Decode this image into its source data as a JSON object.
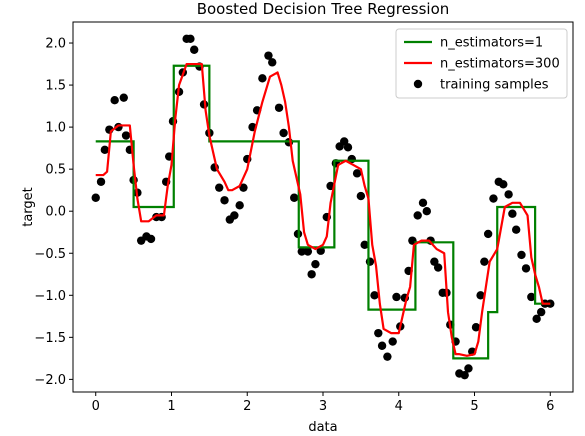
{
  "chart_data": {
    "type": "scatter",
    "title": "Boosted Decision Tree Regression",
    "xlabel": "data",
    "ylabel": "target",
    "xlim": [
      -0.3,
      6.3
    ],
    "ylim": [
      -2.15,
      2.25
    ],
    "xticks": [
      0,
      1,
      2,
      3,
      4,
      5,
      6
    ],
    "xtick_labels": [
      "0",
      "1",
      "2",
      "3",
      "4",
      "5",
      "6"
    ],
    "yticks": [
      -2.0,
      -1.5,
      -1.0,
      -0.5,
      0.0,
      0.5,
      1.0,
      1.5,
      2.0
    ],
    "ytick_labels": [
      "−2.0",
      "−1.5",
      "−1.0",
      "−0.5",
      "0.0",
      "0.5",
      "1.0",
      "1.5",
      "2.0"
    ],
    "legend_position": "top-right",
    "colors": {
      "n1": "#008000",
      "n300": "#ff0000",
      "samples": "#000000"
    },
    "series": [
      {
        "name": "n_estimators=1",
        "kind": "step",
        "x": [
          0.0,
          0.5,
          0.5,
          1.03,
          1.03,
          1.5,
          1.5,
          2.68,
          2.68,
          3.15,
          3.15,
          3.6,
          3.6,
          4.22,
          4.22,
          4.72,
          4.72,
          5.18,
          5.18,
          5.3,
          5.3,
          5.8,
          5.8,
          6.0
        ],
        "y": [
          0.83,
          0.83,
          0.05,
          0.05,
          1.73,
          1.73,
          0.83,
          0.83,
          -0.43,
          -0.43,
          0.6,
          0.6,
          -1.17,
          -1.17,
          -0.37,
          -0.37,
          -1.75,
          -1.75,
          -1.2,
          -1.2,
          0.05,
          0.05,
          -1.1,
          -1.1
        ]
      },
      {
        "name": "n_estimators=300",
        "kind": "line",
        "x": [
          0.0,
          0.1,
          0.15,
          0.2,
          0.3,
          0.4,
          0.45,
          0.5,
          0.55,
          0.6,
          0.65,
          0.7,
          0.8,
          0.9,
          0.95,
          1.0,
          1.05,
          1.1,
          1.2,
          1.3,
          1.4,
          1.45,
          1.5,
          1.55,
          1.6,
          1.7,
          1.75,
          1.8,
          1.9,
          2.0,
          2.1,
          2.2,
          2.3,
          2.4,
          2.45,
          2.5,
          2.55,
          2.6,
          2.7,
          2.75,
          2.8,
          2.9,
          3.0,
          3.05,
          3.1,
          3.2,
          3.3,
          3.4,
          3.5,
          3.55,
          3.6,
          3.65,
          3.7,
          3.75,
          3.8,
          3.9,
          4.0,
          4.1,
          4.15,
          4.2,
          4.3,
          4.4,
          4.5,
          4.6,
          4.65,
          4.7,
          4.75,
          4.8,
          4.9,
          5.0,
          5.05,
          5.1,
          5.15,
          5.2,
          5.3,
          5.4,
          5.5,
          5.6,
          5.7,
          5.75,
          5.8,
          5.85,
          5.9,
          6.0
        ],
        "y": [
          0.43,
          0.43,
          0.47,
          0.95,
          1.02,
          1.02,
          1.02,
          0.55,
          0.15,
          -0.12,
          -0.12,
          -0.12,
          -0.05,
          -0.05,
          0.3,
          0.55,
          1.1,
          1.5,
          1.75,
          1.75,
          1.75,
          1.2,
          0.9,
          0.7,
          0.5,
          0.35,
          0.25,
          0.25,
          0.3,
          0.5,
          0.95,
          1.3,
          1.6,
          1.65,
          1.5,
          1.3,
          1.0,
          0.6,
          0.2,
          -0.25,
          -0.4,
          -0.45,
          -0.4,
          -0.3,
          0.1,
          0.55,
          0.6,
          0.55,
          0.5,
          0.3,
          0.15,
          -0.4,
          -0.65,
          -1.1,
          -1.4,
          -1.45,
          -1.45,
          -1.05,
          -0.9,
          -0.4,
          -0.35,
          -0.35,
          -0.45,
          -0.5,
          -1.2,
          -1.5,
          -1.7,
          -1.7,
          -1.72,
          -1.7,
          -1.55,
          -1.2,
          -0.9,
          -0.6,
          -0.45,
          0.05,
          0.1,
          0.1,
          -0.05,
          -0.55,
          -0.75,
          -0.9,
          -1.1,
          -1.1
        ]
      },
      {
        "name": "training samples",
        "kind": "scatter",
        "x": [
          0.0,
          0.07,
          0.12,
          0.18,
          0.25,
          0.3,
          0.37,
          0.4,
          0.45,
          0.5,
          0.55,
          0.6,
          0.67,
          0.73,
          0.8,
          0.87,
          0.93,
          0.97,
          1.02,
          1.1,
          1.15,
          1.2,
          1.25,
          1.3,
          1.37,
          1.43,
          1.5,
          1.57,
          1.63,
          1.7,
          1.77,
          1.83,
          1.9,
          1.95,
          2.0,
          2.07,
          2.13,
          2.2,
          2.28,
          2.33,
          2.42,
          2.48,
          2.55,
          2.62,
          2.67,
          2.72,
          2.8,
          2.85,
          2.9,
          2.97,
          3.05,
          3.1,
          3.17,
          3.22,
          3.28,
          3.33,
          3.38,
          3.45,
          3.5,
          3.55,
          3.62,
          3.68,
          3.73,
          3.78,
          3.85,
          3.92,
          3.97,
          4.02,
          4.08,
          4.13,
          4.18,
          4.25,
          4.32,
          4.37,
          4.42,
          4.47,
          4.52,
          4.58,
          4.63,
          4.68,
          4.75,
          4.8,
          4.87,
          4.92,
          4.97,
          5.02,
          5.08,
          5.13,
          5.18,
          5.25,
          5.32,
          5.38,
          5.45,
          5.5,
          5.55,
          5.62,
          5.68,
          5.75,
          5.82,
          5.88,
          5.93,
          6.0
        ],
        "y": [
          0.16,
          0.35,
          0.73,
          0.97,
          1.32,
          1.0,
          1.35,
          0.9,
          0.73,
          0.37,
          0.22,
          -0.35,
          -0.3,
          -0.33,
          -0.07,
          -0.07,
          0.35,
          0.65,
          1.07,
          1.42,
          1.65,
          2.05,
          2.05,
          1.92,
          1.72,
          1.27,
          0.93,
          0.52,
          0.28,
          0.13,
          -0.1,
          -0.05,
          0.07,
          0.28,
          0.62,
          1.0,
          1.2,
          1.58,
          1.85,
          1.77,
          1.23,
          0.93,
          0.82,
          0.16,
          -0.27,
          -0.48,
          -0.48,
          -0.75,
          -0.63,
          -0.47,
          -0.07,
          0.3,
          0.57,
          0.77,
          0.83,
          0.76,
          0.62,
          0.45,
          0.18,
          -0.4,
          -0.6,
          -1.0,
          -1.45,
          -1.6,
          -1.73,
          -1.55,
          -1.02,
          -1.37,
          -1.03,
          -0.71,
          -0.35,
          -0.05,
          0.1,
          0.0,
          -0.35,
          -0.6,
          -0.67,
          -0.97,
          -0.97,
          -1.35,
          -1.55,
          -1.93,
          -1.95,
          -1.87,
          -1.67,
          -1.38,
          -1.0,
          -0.6,
          -0.27,
          0.15,
          0.35,
          0.32,
          0.2,
          -0.03,
          -0.22,
          -0.52,
          -0.68,
          -1.02,
          -1.28,
          -1.2,
          -1.1,
          -1.1
        ]
      }
    ]
  }
}
